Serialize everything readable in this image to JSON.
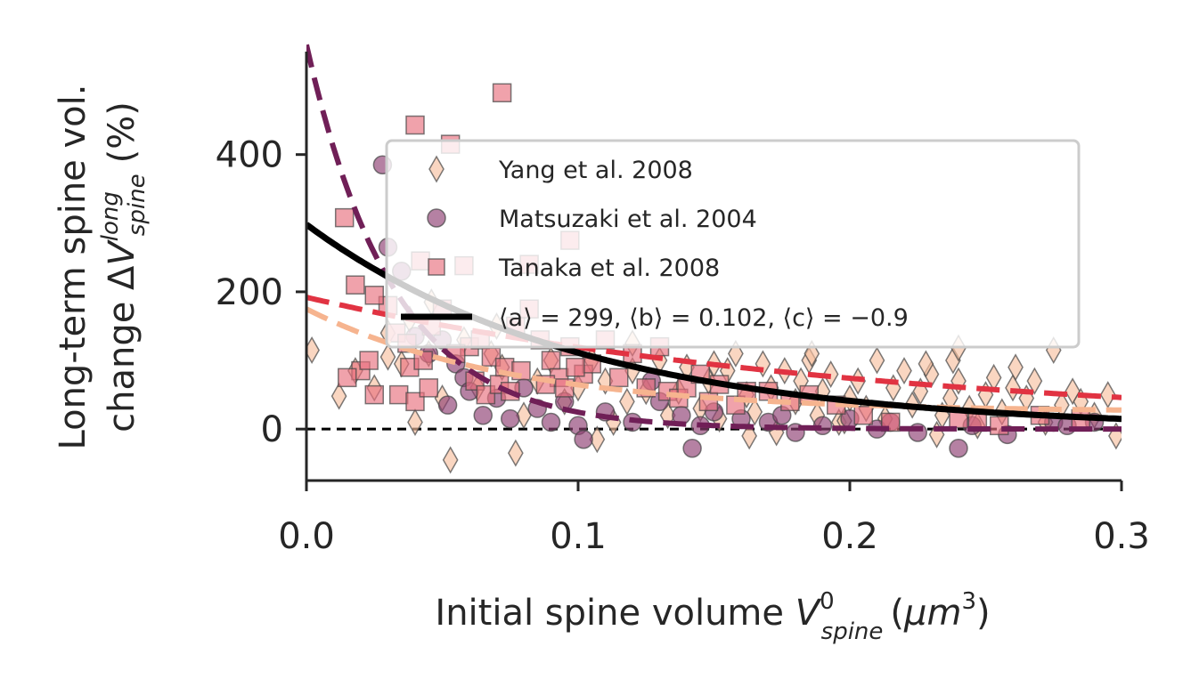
{
  "chart_data": {
    "type": "scatter",
    "title": "",
    "xlabel": "Initial spine volume V_spine^0 (μm^3)",
    "ylabel_line1": "Long-term spine vol.",
    "ylabel_line2": "change ΔV_spine^long (%)",
    "xlim": [
      0.0,
      0.3
    ],
    "ylim": [
      -75,
      550
    ],
    "x_ticks": [
      0.0,
      0.1,
      0.2,
      0.3
    ],
    "x_tick_labels": [
      "0.0",
      "0.1",
      "0.2",
      "0.3"
    ],
    "y_ticks": [
      0,
      200,
      400
    ],
    "y_tick_labels": [
      "0",
      "200",
      "400"
    ],
    "grid": false,
    "legend_position": "upper-right",
    "reference_line": {
      "y": 0,
      "style": "dashed",
      "color": "#000000"
    },
    "series": [
      {
        "name": "Yang et al. 2008",
        "marker": "thin_diamond",
        "color": "#f8c0a0",
        "points": [
          [
            0.002,
            115
          ],
          [
            0.012,
            48
          ],
          [
            0.018,
            85
          ],
          [
            0.025,
            60
          ],
          [
            0.03,
            105
          ],
          [
            0.035,
            95
          ],
          [
            0.04,
            10
          ],
          [
            0.045,
            110
          ],
          [
            0.05,
            45
          ],
          [
            0.053,
            -45
          ],
          [
            0.058,
            130
          ],
          [
            0.063,
            60
          ],
          [
            0.068,
            110
          ],
          [
            0.072,
            90
          ],
          [
            0.077,
            -35
          ],
          [
            0.08,
            20
          ],
          [
            0.085,
            70
          ],
          [
            0.09,
            100
          ],
          [
            0.095,
            40
          ],
          [
            0.1,
            60
          ],
          [
            0.105,
            100
          ],
          [
            0.11,
            70
          ],
          [
            0.113,
            10
          ],
          [
            0.118,
            40
          ],
          [
            0.12,
            85
          ],
          [
            0.125,
            55
          ],
          [
            0.13,
            100
          ],
          [
            0.133,
            20
          ],
          [
            0.137,
            55
          ],
          [
            0.14,
            90
          ],
          [
            0.145,
            30
          ],
          [
            0.148,
            70
          ],
          [
            0.152,
            15
          ],
          [
            0.155,
            85
          ],
          [
            0.158,
            110
          ],
          [
            0.162,
            50
          ],
          [
            0.165,
            25
          ],
          [
            0.168,
            95
          ],
          [
            0.171,
            60
          ],
          [
            0.173,
            -5
          ],
          [
            0.176,
            85
          ],
          [
            0.18,
            40
          ],
          [
            0.182,
            70
          ],
          [
            0.185,
            100
          ],
          [
            0.188,
            20
          ],
          [
            0.19,
            55
          ],
          [
            0.193,
            80
          ],
          [
            0.196,
            10
          ],
          [
            0.2,
            45
          ],
          [
            0.203,
            70
          ],
          [
            0.206,
            30
          ],
          [
            0.21,
            100
          ],
          [
            0.213,
            15
          ],
          [
            0.216,
            60
          ],
          [
            0.22,
            85
          ],
          [
            0.223,
            35
          ],
          [
            0.226,
            55
          ],
          [
            0.23,
            80
          ],
          [
            0.234,
            20
          ],
          [
            0.237,
            45
          ],
          [
            0.24,
            70
          ],
          [
            0.244,
            30
          ],
          [
            0.247,
            5
          ],
          [
            0.25,
            50
          ],
          [
            0.253,
            75
          ],
          [
            0.256,
            25
          ],
          [
            0.26,
            60
          ],
          [
            0.265,
            45
          ],
          [
            0.268,
            70
          ],
          [
            0.272,
            10
          ],
          [
            0.275,
            115
          ],
          [
            0.278,
            35
          ],
          [
            0.282,
            55
          ],
          [
            0.285,
            40
          ],
          [
            0.29,
            20
          ],
          [
            0.295,
            50
          ],
          [
            0.298,
            -10
          ],
          [
            0.107,
            -15
          ],
          [
            0.163,
            -10
          ],
          [
            0.232,
            -8
          ],
          [
            0.186,
            110
          ],
          [
            0.15,
            95
          ],
          [
            0.238,
            100
          ],
          [
            0.261,
            90
          ],
          [
            0.24,
            118
          ],
          [
            0.07,
            150
          ],
          [
            0.12,
            125
          ],
          [
            0.198,
            12
          ],
          [
            0.228,
            95
          ],
          [
            0.03,
            140
          ],
          [
            0.038,
            160
          ],
          [
            0.046,
            185
          ]
        ]
      },
      {
        "name": "Matsuzaki et al. 2004",
        "marker": "circle",
        "color": "#8e3e72",
        "points": [
          [
            0.028,
            385
          ],
          [
            0.03,
            265
          ],
          [
            0.035,
            230
          ],
          [
            0.04,
            135
          ],
          [
            0.045,
            110
          ],
          [
            0.05,
            130
          ],
          [
            0.052,
            35
          ],
          [
            0.055,
            95
          ],
          [
            0.058,
            75
          ],
          [
            0.06,
            55
          ],
          [
            0.065,
            20
          ],
          [
            0.07,
            45
          ],
          [
            0.075,
            15
          ],
          [
            0.08,
            60
          ],
          [
            0.085,
            30
          ],
          [
            0.09,
            10
          ],
          [
            0.095,
            40
          ],
          [
            0.1,
            5
          ],
          [
            0.102,
            -15
          ],
          [
            0.11,
            25
          ],
          [
            0.12,
            10
          ],
          [
            0.127,
            70
          ],
          [
            0.13,
            40
          ],
          [
            0.138,
            20
          ],
          [
            0.142,
            -28
          ],
          [
            0.145,
            5
          ],
          [
            0.15,
            25
          ],
          [
            0.16,
            15
          ],
          [
            0.17,
            10
          ],
          [
            0.175,
            20
          ],
          [
            0.18,
            -5
          ],
          [
            0.19,
            5
          ],
          [
            0.2,
            15
          ],
          [
            0.21,
            0
          ],
          [
            0.215,
            10
          ],
          [
            0.225,
            -5
          ],
          [
            0.24,
            -28
          ],
          [
            0.245,
            5
          ],
          [
            0.258,
            -8
          ],
          [
            0.275,
            10
          ],
          [
            0.28,
            5
          ],
          [
            0.29,
            10
          ]
        ]
      },
      {
        "name": "Tanaka et al. 2008",
        "marker": "square",
        "color": "#e8707e",
        "points": [
          [
            0.072,
            490
          ],
          [
            0.04,
            443
          ],
          [
            0.053,
            415
          ],
          [
            0.014,
            308
          ],
          [
            0.03,
            180
          ],
          [
            0.097,
            275
          ],
          [
            0.042,
            245
          ],
          [
            0.058,
            238
          ],
          [
            0.082,
            240
          ],
          [
            0.018,
            210
          ],
          [
            0.025,
            195
          ],
          [
            0.033,
            140
          ],
          [
            0.037,
            125
          ],
          [
            0.046,
            150
          ],
          [
            0.05,
            175
          ],
          [
            0.06,
            120
          ],
          [
            0.064,
            130
          ],
          [
            0.068,
            105
          ],
          [
            0.073,
            90
          ],
          [
            0.077,
            150
          ],
          [
            0.082,
            175
          ],
          [
            0.086,
            130
          ],
          [
            0.09,
            100
          ],
          [
            0.093,
            75
          ],
          [
            0.097,
            120
          ],
          [
            0.102,
            80
          ],
          [
            0.105,
            95
          ],
          [
            0.11,
            130
          ],
          [
            0.115,
            75
          ],
          [
            0.12,
            110
          ],
          [
            0.125,
            60
          ],
          [
            0.13,
            120
          ],
          [
            0.133,
            55
          ],
          [
            0.137,
            45
          ],
          [
            0.14,
            60
          ],
          [
            0.145,
            80
          ],
          [
            0.148,
            40
          ],
          [
            0.152,
            65
          ],
          [
            0.158,
            35
          ],
          [
            0.162,
            55
          ],
          [
            0.02,
            85
          ],
          [
            0.025,
            50
          ],
          [
            0.034,
            50
          ],
          [
            0.04,
            40
          ],
          [
            0.045,
            60
          ],
          [
            0.038,
            90
          ],
          [
            0.023,
            100
          ],
          [
            0.043,
            100
          ],
          [
            0.015,
            75
          ],
          [
            0.055,
            110
          ],
          [
            0.062,
            70
          ],
          [
            0.066,
            50
          ],
          [
            0.071,
            65
          ],
          [
            0.075,
            55
          ],
          [
            0.079,
            85
          ],
          [
            0.088,
            65
          ],
          [
            0.095,
            60
          ],
          [
            0.099,
            90
          ],
          [
            0.17,
            55
          ],
          [
            0.178,
            40
          ],
          [
            0.185,
            50
          ],
          [
            0.195,
            35
          ],
          [
            0.205,
            20
          ],
          [
            0.215,
            10
          ],
          [
            0.24,
            15
          ],
          [
            0.247,
            10
          ],
          [
            0.255,
            5
          ],
          [
            0.27,
            20
          ],
          [
            0.285,
            15
          ]
        ]
      }
    ],
    "fit_curves": [
      {
        "color": "#701f57",
        "style": "dashed",
        "a": 560,
        "b": 0.032,
        "c": 0
      },
      {
        "color": "#e13342",
        "style": "dashed",
        "a": 192,
        "b": 0.21,
        "c": 0
      },
      {
        "color": "#f6b48f",
        "style": "dashed",
        "a": 150,
        "b": 0.075,
        "c": 25
      },
      {
        "name": "⟨a⟩ = 299, ⟨b⟩ = 0.102, ⟨c⟩ = −0.9",
        "color": "#000000",
        "style": "solid",
        "a": 299,
        "b": 0.102,
        "c": -0.9
      }
    ],
    "legend_entries": [
      "Yang et al. 2008",
      "Matsuzaki et al. 2004",
      "Tanaka et al. 2008",
      "⟨a⟩ = 299, ⟨b⟩ = 0.102, ⟨c⟩ = −0.9"
    ]
  }
}
